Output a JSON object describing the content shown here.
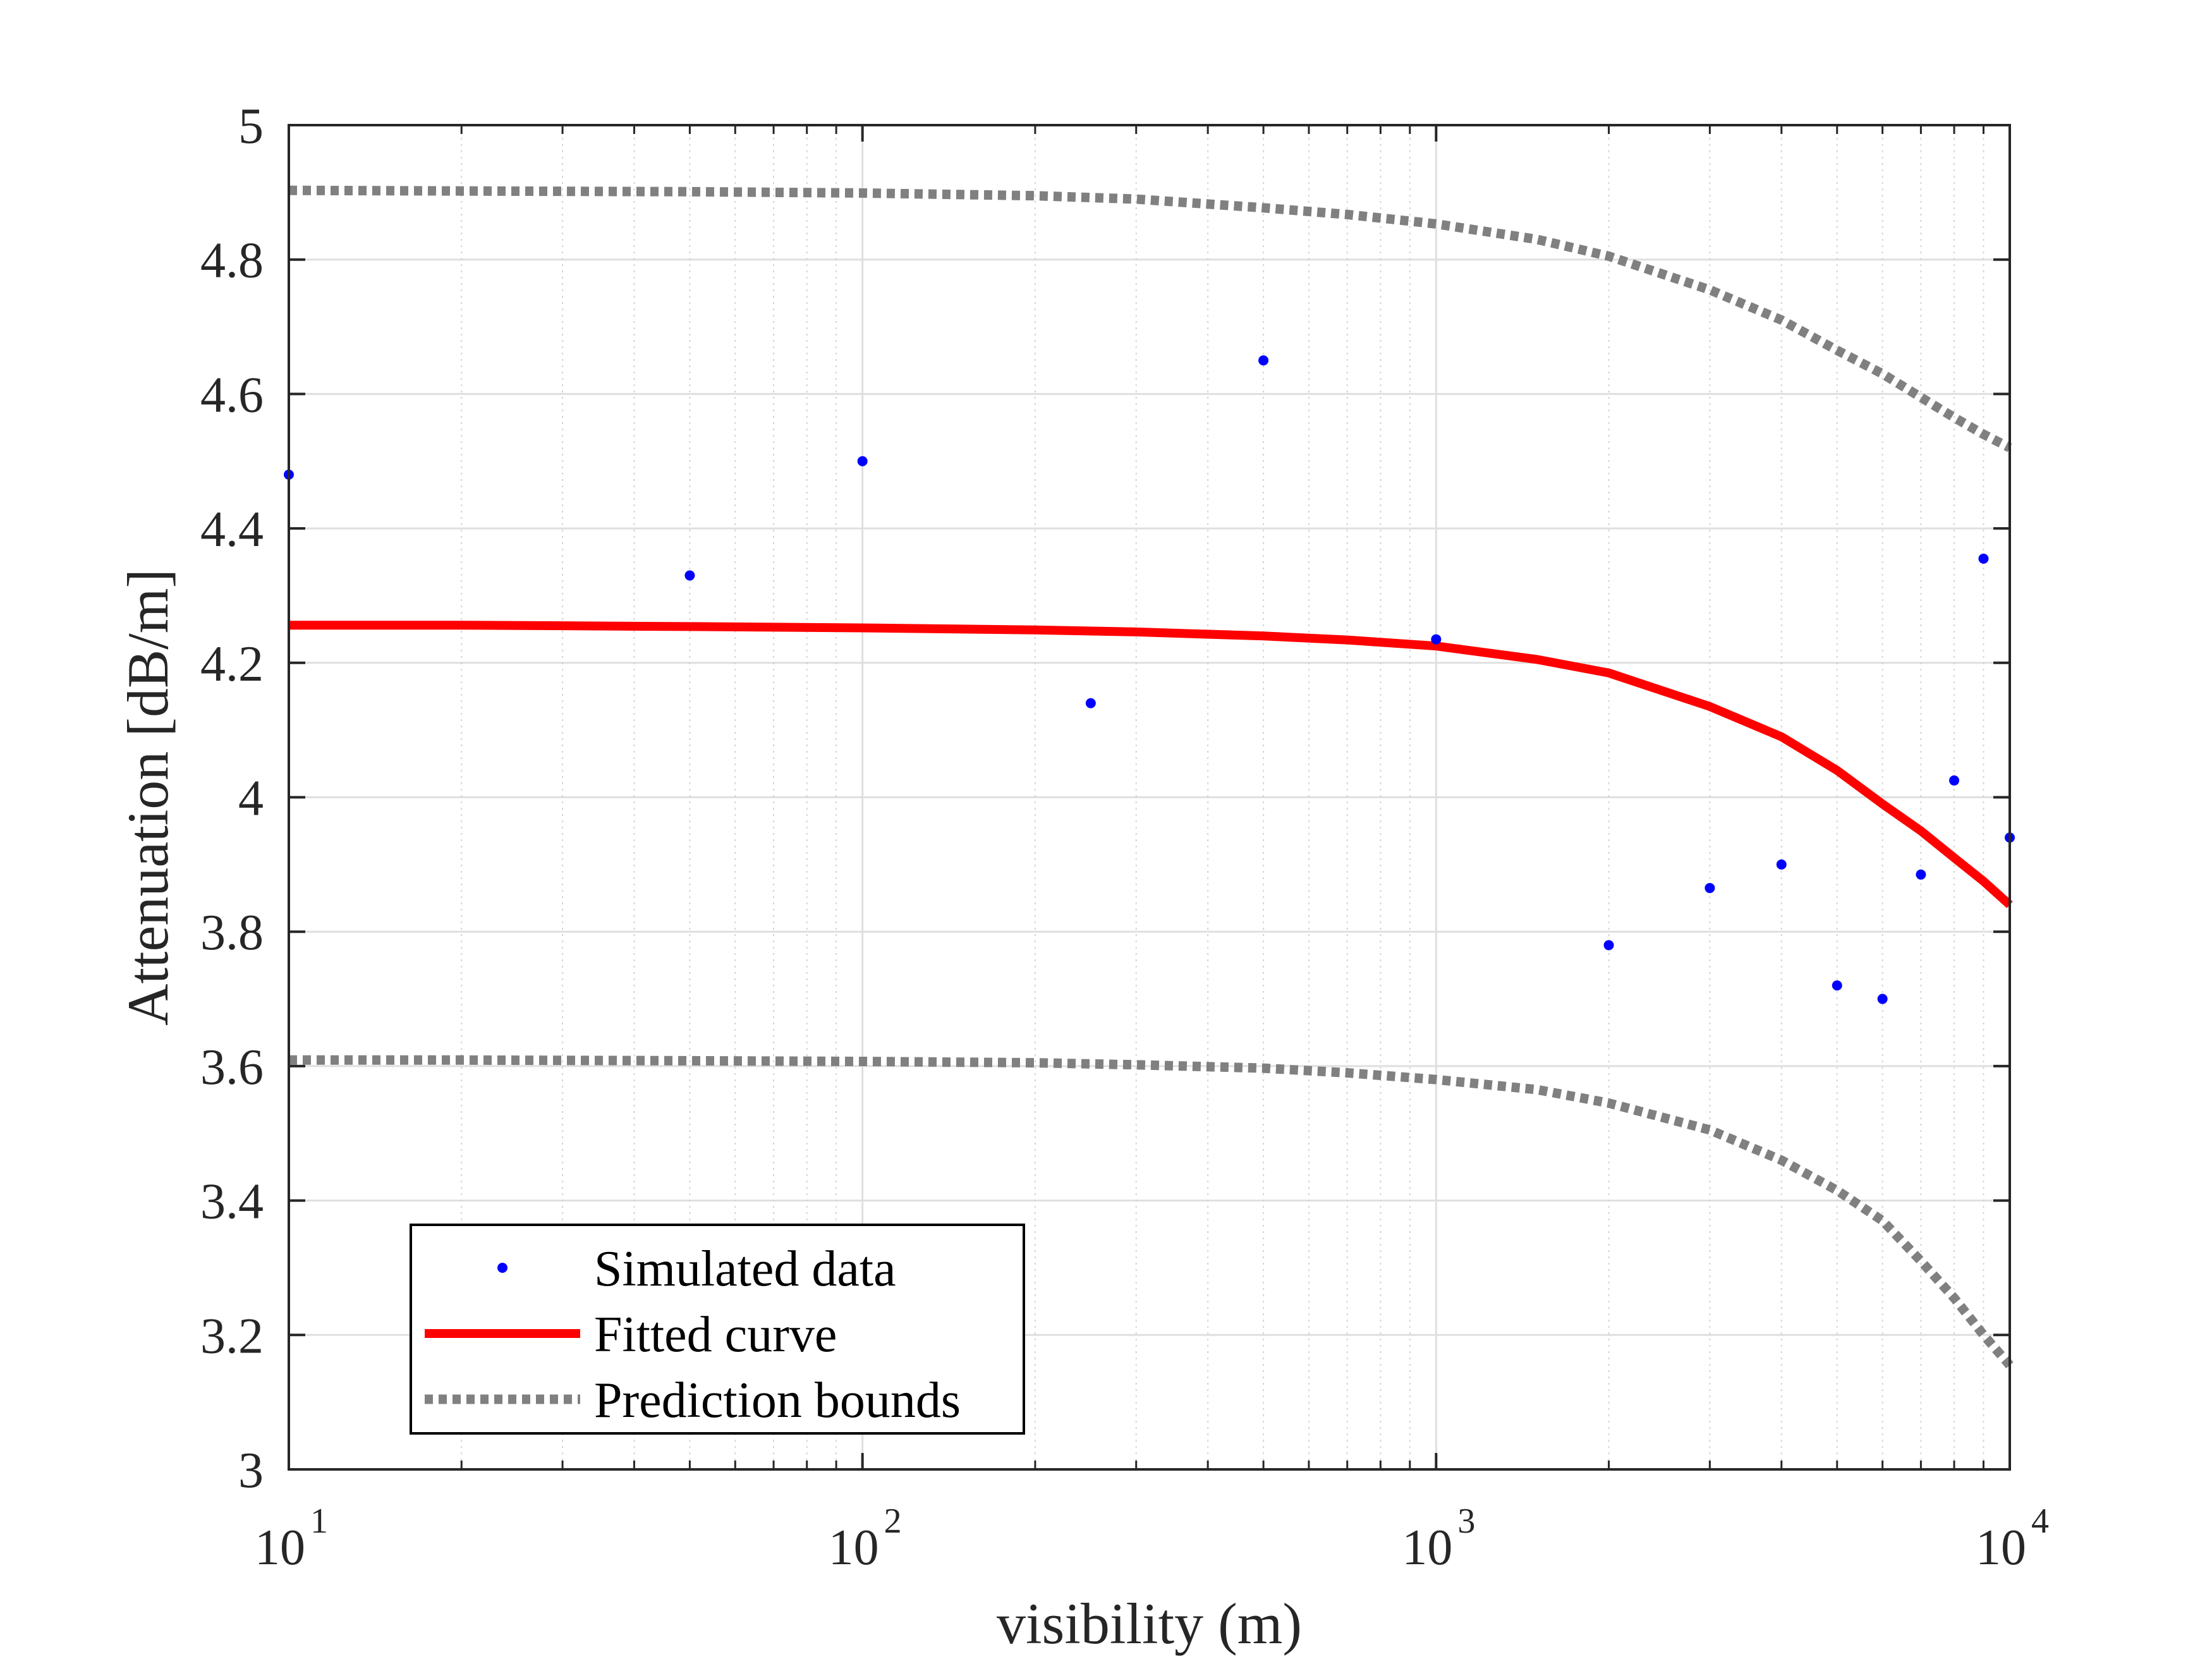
{
  "chart_data": {
    "type": "scatter",
    "xlabel": "visibility (m)",
    "ylabel": "Attenuation [dB/m]",
    "xscale": "log",
    "xlim": [
      10,
      10000
    ],
    "ylim": [
      3,
      5
    ],
    "xticks": [
      {
        "value": 10,
        "base": "10",
        "exp": "1"
      },
      {
        "value": 100,
        "base": "10",
        "exp": "2"
      },
      {
        "value": 1000,
        "base": "10",
        "exp": "3"
      },
      {
        "value": 10000,
        "base": "10",
        "exp": "4"
      }
    ],
    "yticks": [
      "3",
      "3.2",
      "3.4",
      "3.6",
      "3.8",
      "4",
      "4.2",
      "4.4",
      "4.6",
      "4.8",
      "5"
    ],
    "grid": true,
    "legend_position": "bottom-left",
    "series": [
      {
        "name": "Simulated data",
        "kind": "scatter",
        "color": "#0000ff",
        "x": [
          10,
          50,
          100,
          250,
          500,
          1000,
          2000,
          3000,
          4000,
          5000,
          6000,
          7000,
          8000,
          9000,
          10000
        ],
        "y": [
          4.48,
          4.33,
          4.5,
          4.14,
          4.65,
          4.235,
          3.78,
          3.865,
          3.9,
          3.72,
          3.7,
          3.885,
          4.025,
          4.355,
          3.94
        ]
      },
      {
        "name": "Fitted curve",
        "kind": "line",
        "color": "#ff0000",
        "x": [
          10,
          20,
          50,
          100,
          200,
          300,
          500,
          700,
          1000,
          1500,
          2000,
          3000,
          4000,
          5000,
          6000,
          7000,
          8000,
          9000,
          10000
        ],
        "y": [
          4.256,
          4.256,
          4.254,
          4.252,
          4.249,
          4.246,
          4.24,
          4.234,
          4.225,
          4.205,
          4.185,
          4.135,
          4.09,
          4.04,
          3.99,
          3.95,
          3.91,
          3.875,
          3.84
        ]
      },
      {
        "name": "Prediction bounds",
        "kind": "dotted",
        "color": "#808080",
        "x": [
          10,
          20,
          50,
          100,
          200,
          300,
          500,
          700,
          1000,
          1500,
          2000,
          3000,
          4000,
          5000,
          6000,
          7000,
          8000,
          9000,
          10000
        ],
        "y": [
          4.903,
          4.902,
          4.901,
          4.899,
          4.895,
          4.89,
          4.877,
          4.867,
          4.853,
          4.83,
          4.805,
          4.755,
          4.71,
          4.665,
          4.63,
          4.595,
          4.565,
          4.54,
          4.52
        ]
      },
      {
        "kind": "dotted",
        "color": "#808080",
        "x": [
          10,
          20,
          50,
          100,
          200,
          300,
          500,
          700,
          1000,
          1500,
          2000,
          3000,
          4000,
          5000,
          6000,
          7000,
          8000,
          9000,
          10000
        ],
        "y": [
          3.609,
          3.609,
          3.608,
          3.607,
          3.605,
          3.602,
          3.597,
          3.59,
          3.58,
          3.565,
          3.545,
          3.505,
          3.46,
          3.415,
          3.37,
          3.31,
          3.255,
          3.2,
          3.155
        ]
      }
    ]
  }
}
